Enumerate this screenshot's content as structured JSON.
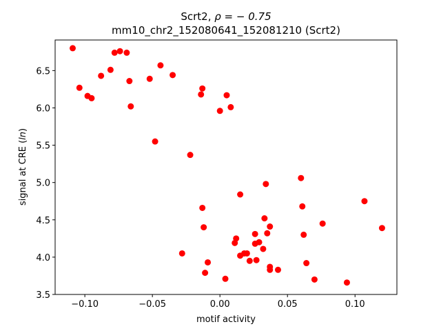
{
  "colors": {
    "marker": "#ff0000",
    "axes": "#000000",
    "background": "#ffffff"
  },
  "chart_data": {
    "type": "scatter",
    "title_line1_prefix": "Scrt2, ",
    "title_line1_math": "ρ = − 0.75",
    "title_line2": "mm10_chr2_152080641_152081210 (Scrt2)",
    "xlabel": "motif activity",
    "ylabel_prefix": "signal at CRE (",
    "ylabel_math": "ln",
    "ylabel_suffix": ")",
    "xlim": [
      -0.122,
      0.131
    ],
    "ylim": [
      3.5,
      6.91
    ],
    "x_ticks": [
      -0.1,
      -0.05,
      0.0,
      0.05,
      0.1
    ],
    "x_tick_labels": [
      "−0.10",
      "−0.05",
      "0.00",
      "0.05",
      "0.10"
    ],
    "y_ticks": [
      3.5,
      4.0,
      4.5,
      5.0,
      5.5,
      6.0,
      6.5
    ],
    "y_tick_labels": [
      "3.5",
      "4.0",
      "4.5",
      "5.0",
      "5.5",
      "6.0",
      "6.5"
    ],
    "grid": false,
    "legend": "none",
    "marker": "circle",
    "points": [
      {
        "x": -0.109,
        "y": 6.8
      },
      {
        "x": -0.104,
        "y": 6.27
      },
      {
        "x": -0.098,
        "y": 6.16
      },
      {
        "x": -0.095,
        "y": 6.13
      },
      {
        "x": -0.088,
        "y": 6.43
      },
      {
        "x": -0.081,
        "y": 6.51
      },
      {
        "x": -0.078,
        "y": 6.74
      },
      {
        "x": -0.074,
        "y": 6.76
      },
      {
        "x": -0.069,
        "y": 6.74
      },
      {
        "x": -0.067,
        "y": 6.36
      },
      {
        "x": -0.066,
        "y": 6.02
      },
      {
        "x": -0.052,
        "y": 6.39
      },
      {
        "x": -0.048,
        "y": 5.55
      },
      {
        "x": -0.044,
        "y": 6.57
      },
      {
        "x": -0.035,
        "y": 6.44
      },
      {
        "x": -0.028,
        "y": 4.05
      },
      {
        "x": -0.022,
        "y": 5.37
      },
      {
        "x": -0.014,
        "y": 6.18
      },
      {
        "x": -0.013,
        "y": 6.26
      },
      {
        "x": -0.013,
        "y": 4.66
      },
      {
        "x": -0.012,
        "y": 4.4
      },
      {
        "x": -0.011,
        "y": 3.79
      },
      {
        "x": -0.009,
        "y": 3.93
      },
      {
        "x": 0.0,
        "y": 5.96
      },
      {
        "x": 0.004,
        "y": 3.71
      },
      {
        "x": 0.005,
        "y": 6.17
      },
      {
        "x": 0.008,
        "y": 6.01
      },
      {
        "x": 0.011,
        "y": 4.19
      },
      {
        "x": 0.012,
        "y": 4.25
      },
      {
        "x": 0.015,
        "y": 4.84
      },
      {
        "x": 0.015,
        "y": 4.02
      },
      {
        "x": 0.018,
        "y": 4.05
      },
      {
        "x": 0.02,
        "y": 4.05
      },
      {
        "x": 0.022,
        "y": 3.95
      },
      {
        "x": 0.026,
        "y": 4.31
      },
      {
        "x": 0.026,
        "y": 4.18
      },
      {
        "x": 0.027,
        "y": 3.96
      },
      {
        "x": 0.029,
        "y": 4.2
      },
      {
        "x": 0.032,
        "y": 4.11
      },
      {
        "x": 0.033,
        "y": 4.52
      },
      {
        "x": 0.034,
        "y": 4.98
      },
      {
        "x": 0.035,
        "y": 4.32
      },
      {
        "x": 0.037,
        "y": 4.41
      },
      {
        "x": 0.037,
        "y": 3.87
      },
      {
        "x": 0.037,
        "y": 3.83
      },
      {
        "x": 0.043,
        "y": 3.83
      },
      {
        "x": 0.06,
        "y": 5.06
      },
      {
        "x": 0.061,
        "y": 4.68
      },
      {
        "x": 0.062,
        "y": 4.3
      },
      {
        "x": 0.064,
        "y": 3.92
      },
      {
        "x": 0.07,
        "y": 3.7
      },
      {
        "x": 0.076,
        "y": 4.45
      },
      {
        "x": 0.094,
        "y": 3.66
      },
      {
        "x": 0.107,
        "y": 4.75
      },
      {
        "x": 0.12,
        "y": 4.39
      }
    ]
  }
}
